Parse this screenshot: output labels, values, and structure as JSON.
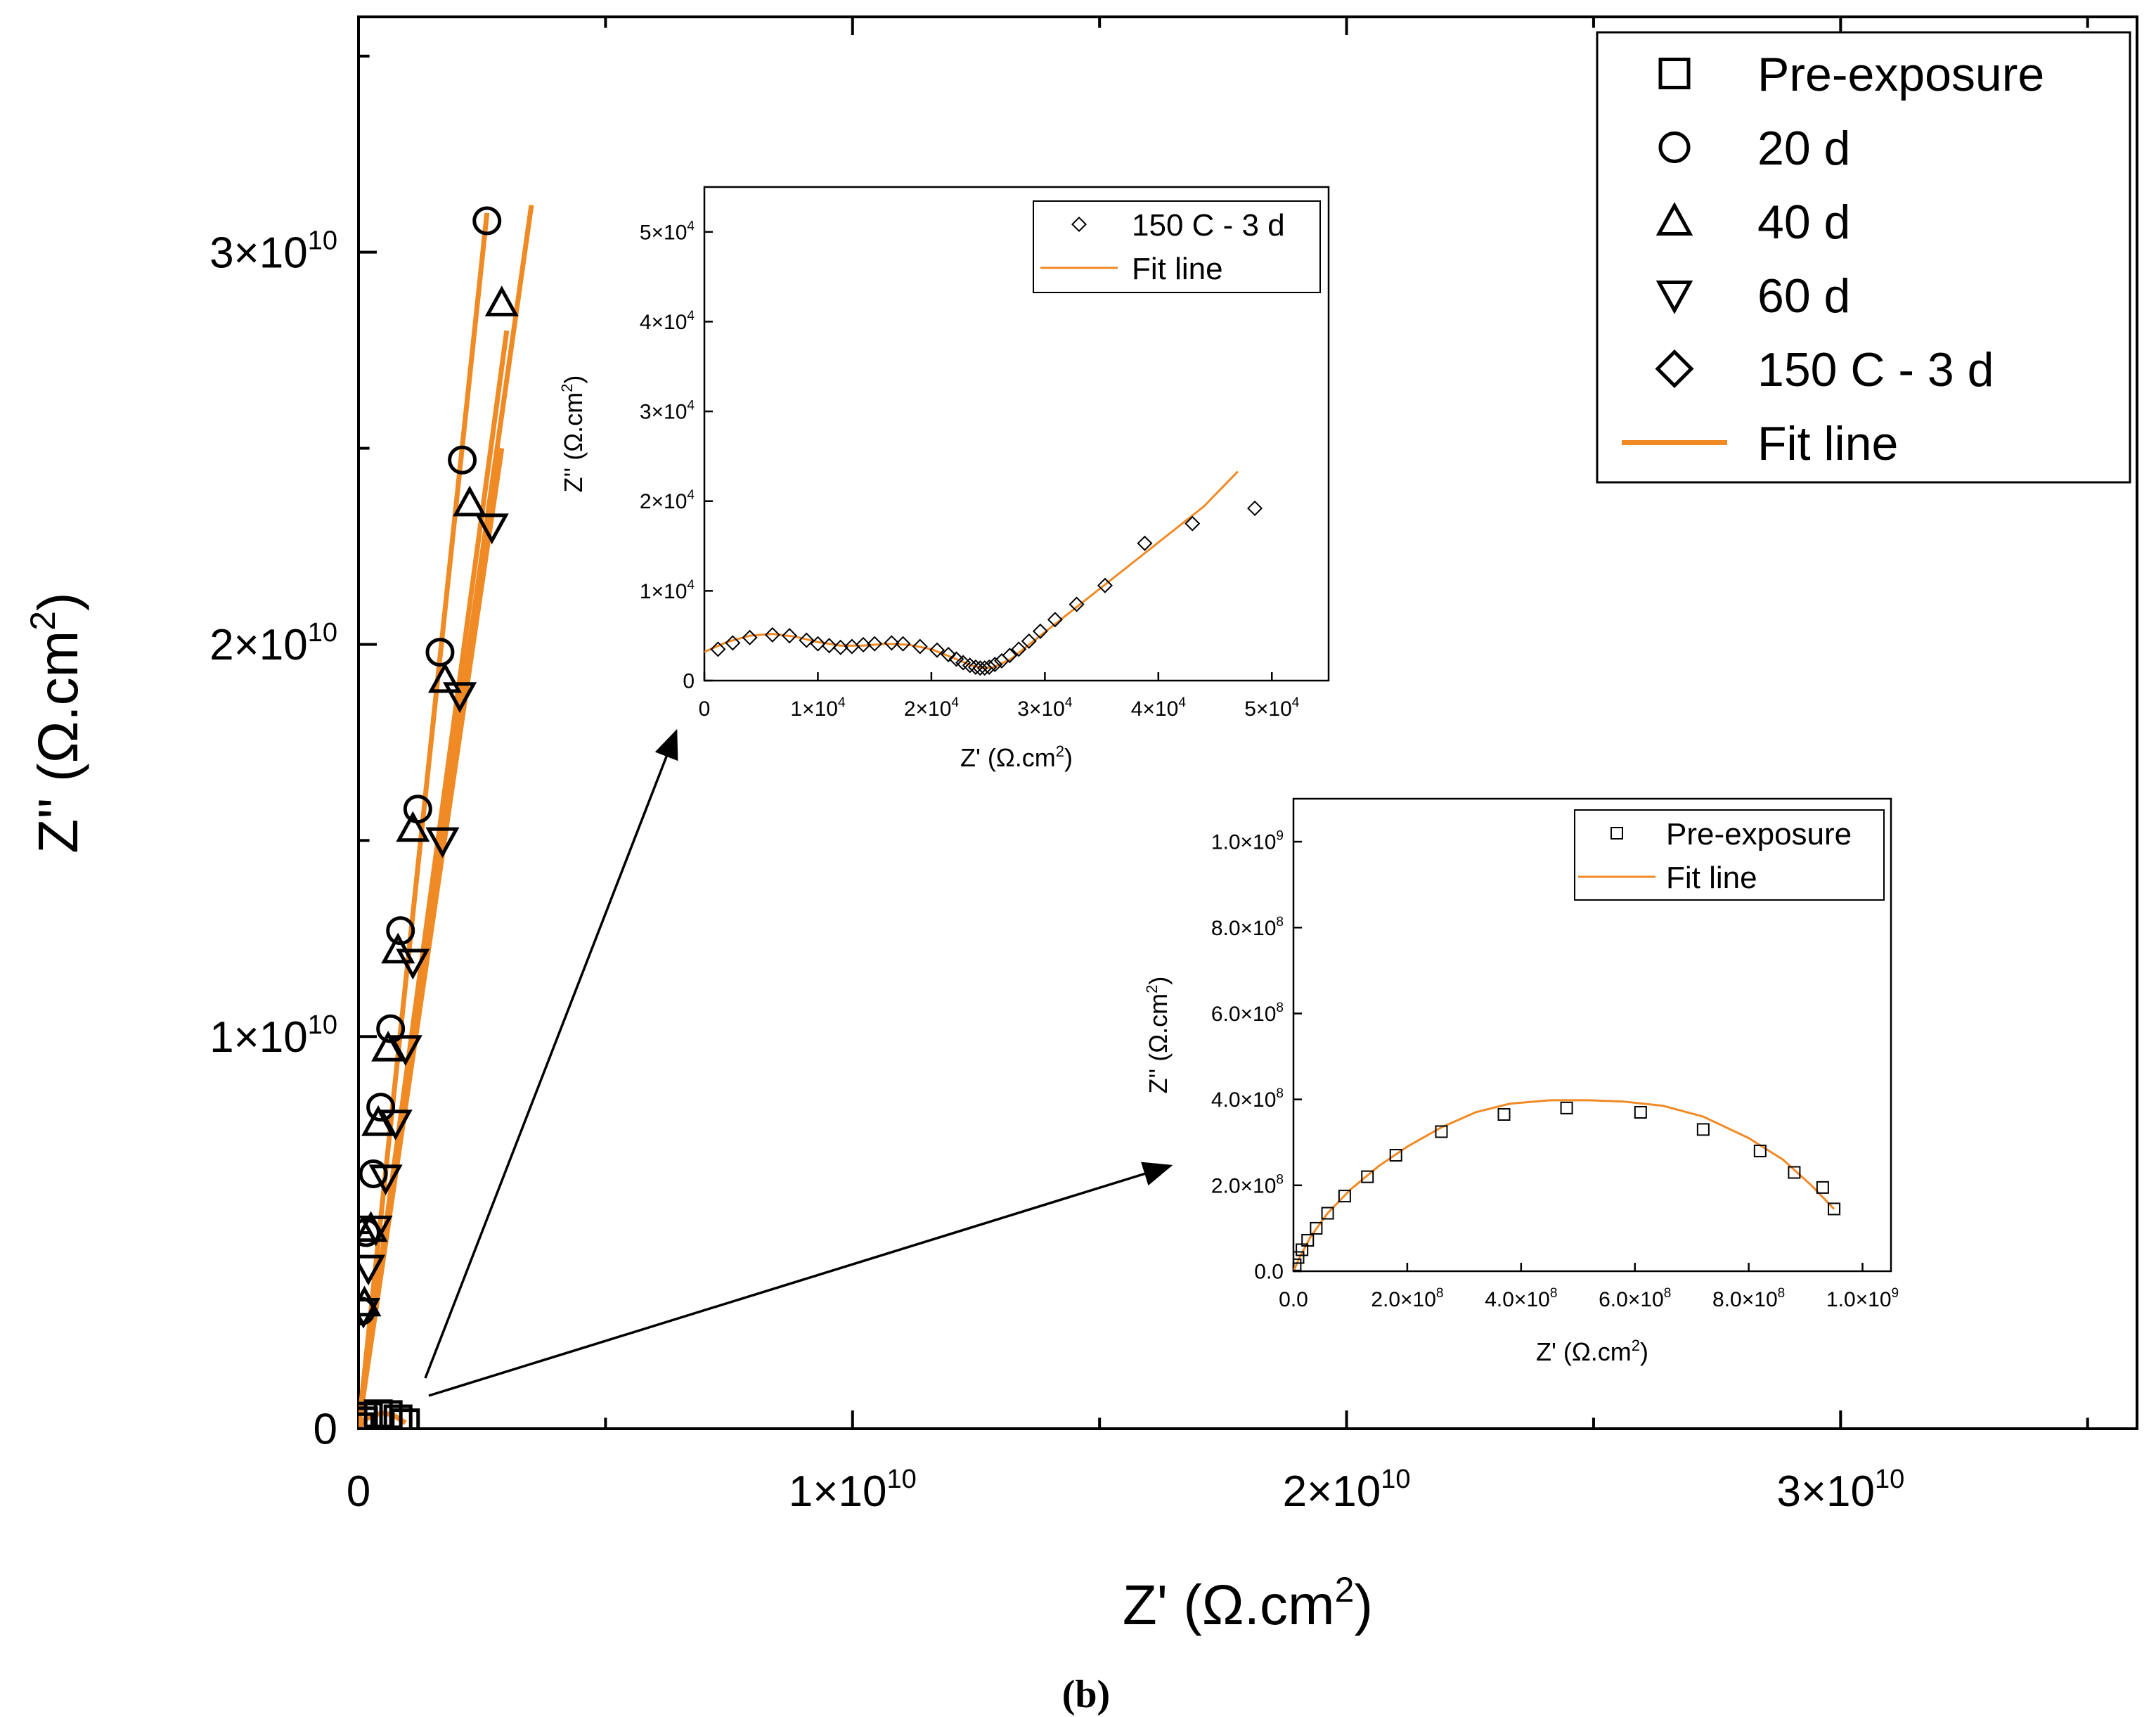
{
  "figure": {
    "panel_label": "(b)",
    "fit_color": "#F08A24",
    "marker_color": "#000000"
  },
  "chart_data": [
    {
      "id": "main",
      "type": "scatter",
      "title": "",
      "xlabel": "Z' (Ω.cm²)",
      "ylabel": "Z'' (Ω.cm²)",
      "xlim": [
        0,
        36000000000.0
      ],
      "ylim": [
        0,
        36000000000.0
      ],
      "xticks": [
        {
          "value": 0,
          "label": "0",
          "mantissa": "",
          "exp": ""
        },
        {
          "value": 10000000000.0,
          "label": "1×10^10",
          "mantissa": "1×10",
          "exp": "10"
        },
        {
          "value": 20000000000.0,
          "label": "2×10^10",
          "mantissa": "2×10",
          "exp": "10"
        },
        {
          "value": 30000000000.0,
          "label": "3×10^10",
          "mantissa": "3×10",
          "exp": "10"
        }
      ],
      "yticks": [
        {
          "value": 0,
          "label": "0",
          "mantissa": "",
          "exp": ""
        },
        {
          "value": 10000000000.0,
          "label": "1×10^10",
          "mantissa": "1×10",
          "exp": "10"
        },
        {
          "value": 20000000000.0,
          "label": "2×10^10",
          "mantissa": "2×10",
          "exp": "10"
        },
        {
          "value": 30000000000.0,
          "label": "3×10^10",
          "mantissa": "3×10",
          "exp": "10"
        }
      ],
      "grid": false,
      "legend_position": "top-right",
      "legend": [
        {
          "label": "Pre-exposure",
          "marker": "square"
        },
        {
          "label": "20 d",
          "marker": "circle"
        },
        {
          "label": "40 d",
          "marker": "triangle-up"
        },
        {
          "label": "60 d",
          "marker": "triangle-down"
        },
        {
          "label": "150 C - 3 d",
          "marker": "diamond"
        },
        {
          "label": "Fit line",
          "marker": "line"
        }
      ],
      "series": [
        {
          "name": "Pre-exposure",
          "marker": "square",
          "x": [
            20000000.0,
            100000000.0,
            200000000.0,
            400000000.0,
            600000000.0,
            800000000.0,
            950000000.0
          ],
          "y": [
            50000000.0,
            200000000.0,
            320000000.0,
            380000000.0,
            360000000.0,
            250000000.0,
            150000000.0
          ]
        },
        {
          "name": "20 d",
          "marker": "circle",
          "x": [
            2600000000.0,
            2100000000.0,
            1650000000.0,
            1200000000.0,
            850000000.0,
            650000000.0,
            450000000.0,
            300000000.0,
            150000000.0,
            50000000.0
          ],
          "y": [
            30800000000.0,
            24700000000.0,
            19800000000.0,
            15800000000.0,
            12700000000.0,
            10200000000.0,
            8200000000.0,
            6500000000.0,
            5000000000.0,
            3000000000.0
          ]
        },
        {
          "name": "40 d",
          "marker": "triangle-up",
          "x": [
            2900000000.0,
            2250000000.0,
            1750000000.0,
            1100000000.0,
            800000000.0,
            600000000.0,
            400000000.0,
            250000000.0,
            120000000.0
          ],
          "y": [
            28700000000.0,
            23600000000.0,
            19100000000.0,
            15300000000.0,
            12200000000.0,
            9700000000.0,
            7800000000.0,
            5100000000.0,
            3200000000.0
          ]
        },
        {
          "name": "60 d",
          "marker": "triangle-down",
          "x": [
            2700000000.0,
            2050000000.0,
            1700000000.0,
            1100000000.0,
            950000000.0,
            750000000.0,
            550000000.0,
            350000000.0,
            200000000.0,
            100000000.0
          ],
          "y": [
            23000000000.0,
            18700000000.0,
            15000000000.0,
            11900000000.0,
            9700000000.0,
            7800000000.0,
            6400000000.0,
            5100000000.0,
            4100000000.0,
            3000000000.0
          ]
        }
      ],
      "fit_lines": [
        {
          "x": [
            0,
            2600000000.0
          ],
          "y": [
            0,
            31000000000.0
          ]
        },
        {
          "x": [
            0,
            3500000000.0
          ],
          "y": [
            0,
            31200000000.0
          ]
        },
        {
          "x": [
            0,
            3000000000.0
          ],
          "y": [
            0,
            28000000000.0
          ]
        },
        {
          "x": [
            0,
            2900000000.0
          ],
          "y": [
            0,
            25000000000.0
          ]
        },
        {
          "x": [
            0,
            120000000.0,
            300000000.0,
            500000000.0,
            700000000.0,
            950000000.0
          ],
          "y": [
            0,
            220000000.0,
            350000000.0,
            400000000.0,
            350000000.0,
            150000000.0
          ]
        }
      ]
    },
    {
      "id": "inset_top",
      "type": "scatter",
      "title": "",
      "xlabel": "Z' (Ω.cm²)",
      "ylabel": "Z'' (Ω.cm²)",
      "xlim": [
        0,
        55000.0
      ],
      "ylim": [
        0,
        55000.0
      ],
      "xticks": [
        {
          "value": 0,
          "label": "0",
          "mantissa": "",
          "exp": ""
        },
        {
          "value": 10000.0,
          "label": "1×10^4",
          "mantissa": "1×10",
          "exp": "4"
        },
        {
          "value": 20000.0,
          "label": "2×10^4",
          "mantissa": "2×10",
          "exp": "4"
        },
        {
          "value": 30000.0,
          "label": "3×10^4",
          "mantissa": "3×10",
          "exp": "4"
        },
        {
          "value": 40000.0,
          "label": "4×10^4",
          "mantissa": "4×10",
          "exp": "4"
        },
        {
          "value": 50000.0,
          "label": "5×10^4",
          "mantissa": "5×10",
          "exp": "4"
        }
      ],
      "yticks": [
        {
          "value": 0,
          "label": "0",
          "mantissa": "",
          "exp": ""
        },
        {
          "value": 10000.0,
          "label": "1×10^4",
          "mantissa": "1×10",
          "exp": "4"
        },
        {
          "value": 20000.0,
          "label": "2×10^4",
          "mantissa": "2×10",
          "exp": "4"
        },
        {
          "value": 30000.0,
          "label": "3×10^4",
          "mantissa": "3×10",
          "exp": "4"
        },
        {
          "value": 40000.0,
          "label": "4×10^4",
          "mantissa": "4×10",
          "exp": "4"
        },
        {
          "value": 50000.0,
          "label": "5×10^4",
          "mantissa": "5×10",
          "exp": "4"
        }
      ],
      "grid": false,
      "legend_position": "top-right",
      "legend": [
        {
          "label": "150 C - 3 d",
          "marker": "diamond"
        },
        {
          "label": "Fit line",
          "marker": "line"
        }
      ],
      "series": [
        {
          "name": "150 C - 3 d",
          "marker": "diamond",
          "x": [
            1200,
            2500,
            4000,
            6000,
            7500,
            9000,
            10000,
            11000,
            12000,
            13000,
            14000,
            15000,
            16500,
            17500,
            19000,
            20500,
            21500,
            22200,
            22800,
            23400,
            23900,
            24300,
            24700,
            25100,
            25600,
            26200,
            26900,
            27700,
            28600,
            29600,
            30900,
            32800,
            35300,
            38800,
            43000,
            48500
          ],
          "y": [
            3500,
            4200,
            4800,
            5100,
            5000,
            4500,
            4100,
            3900,
            3700,
            3800,
            4000,
            4100,
            4200,
            4100,
            3800,
            3400,
            2900,
            2400,
            2000,
            1700,
            1500,
            1400,
            1400,
            1500,
            1800,
            2200,
            2800,
            3500,
            4400,
            5500,
            6800,
            8500,
            10600,
            15300,
            17500,
            19200
          ]
        },
        {
          "name": "Fit line",
          "marker": "line",
          "x": [
            0,
            2000,
            4000,
            6000,
            8000,
            10000,
            12000,
            14000,
            16000,
            18000,
            20000,
            22000,
            23500,
            24500,
            25500,
            27000,
            29000,
            32000,
            36000,
            40000,
            44000,
            47000
          ],
          "y": [
            3200,
            4300,
            5000,
            5200,
            4900,
            4300,
            3900,
            3900,
            4100,
            4000,
            3500,
            2500,
            1700,
            1400,
            1500,
            2400,
            4400,
            7400,
            11400,
            15400,
            19400,
            23300
          ]
        }
      ]
    },
    {
      "id": "inset_bottom",
      "type": "scatter",
      "title": "",
      "xlabel": "Z' (Ω.cm²)",
      "ylabel": "Z'' (Ω.cm²)",
      "xlim": [
        0,
        1050000000.0
      ],
      "ylim": [
        0,
        1100000000.0
      ],
      "xticks": [
        {
          "value": 0,
          "label": "0.0",
          "mantissa": "0.0",
          "exp": ""
        },
        {
          "value": 200000000.0,
          "label": "2.0×10^8",
          "mantissa": "2.0×10",
          "exp": "8"
        },
        {
          "value": 400000000.0,
          "label": "4.0×10^8",
          "mantissa": "4.0×10",
          "exp": "8"
        },
        {
          "value": 600000000.0,
          "label": "6.0×10^8",
          "mantissa": "6.0×10",
          "exp": "8"
        },
        {
          "value": 800000000.0,
          "label": "8.0×10^8",
          "mantissa": "8.0×10",
          "exp": "8"
        },
        {
          "value": 1000000000.0,
          "label": "1.0×10^9",
          "mantissa": "1.0×10",
          "exp": "9"
        }
      ],
      "yticks": [
        {
          "value": 0,
          "label": "0.0",
          "mantissa": "0.0",
          "exp": ""
        },
        {
          "value": 200000000.0,
          "label": "2.0×10^8",
          "mantissa": "2.0×10",
          "exp": "8"
        },
        {
          "value": 400000000.0,
          "label": "4.0×10^8",
          "mantissa": "4.0×10",
          "exp": "8"
        },
        {
          "value": 600000000.0,
          "label": "6.0×10^8",
          "mantissa": "6.0×10",
          "exp": "8"
        },
        {
          "value": 800000000.0,
          "label": "8.0×10^8",
          "mantissa": "8.0×10",
          "exp": "8"
        },
        {
          "value": 1000000000.0,
          "label": "1.0×10^9",
          "mantissa": "1.0×10",
          "exp": "9"
        }
      ],
      "grid": false,
      "legend_position": "top-right",
      "legend": [
        {
          "label": "Pre-exposure",
          "marker": "square"
        },
        {
          "label": "Fit line",
          "marker": "line"
        }
      ],
      "series": [
        {
          "name": "Pre-exposure",
          "marker": "square",
          "x": [
            3000000.0,
            8000000.0,
            15000000.0,
            25000000.0,
            40000000.0,
            60000000.0,
            90000000.0,
            130000000.0,
            180000000.0,
            260000000.0,
            370000000.0,
            480000000.0,
            610000000.0,
            720000000.0,
            820000000.0,
            880000000.0,
            930000000.0,
            950000000.0
          ],
          "y": [
            15000000.0,
            32000000.0,
            50000000.0,
            72000000.0,
            100000000.0,
            135000000.0,
            175000000.0,
            220000000.0,
            270000000.0,
            325000000.0,
            365000000.0,
            380000000.0,
            370000000.0,
            330000000.0,
            280000000.0,
            230000000.0,
            195000000.0,
            145000000.0
          ]
        },
        {
          "name": "Fit line",
          "marker": "line",
          "x": [
            0,
            10000000.0,
            30000000.0,
            60000000.0,
            100000000.0,
            150000000.0,
            200000000.0,
            260000000.0,
            320000000.0,
            380000000.0,
            450000000.0,
            520000000.0,
            580000000.0,
            650000000.0,
            720000000.0,
            800000000.0,
            860000000.0,
            910000000.0,
            950000000.0
          ],
          "y": [
            0,
            30000000.0,
            80000000.0,
            135000000.0,
            190000000.0,
            245000000.0,
            290000000.0,
            335000000.0,
            370000000.0,
            390000000.0,
            398000000.0,
            398000000.0,
            395000000.0,
            385000000.0,
            360000000.0,
            310000000.0,
            260000000.0,
            200000000.0,
            145000000.0
          ]
        }
      ]
    }
  ]
}
